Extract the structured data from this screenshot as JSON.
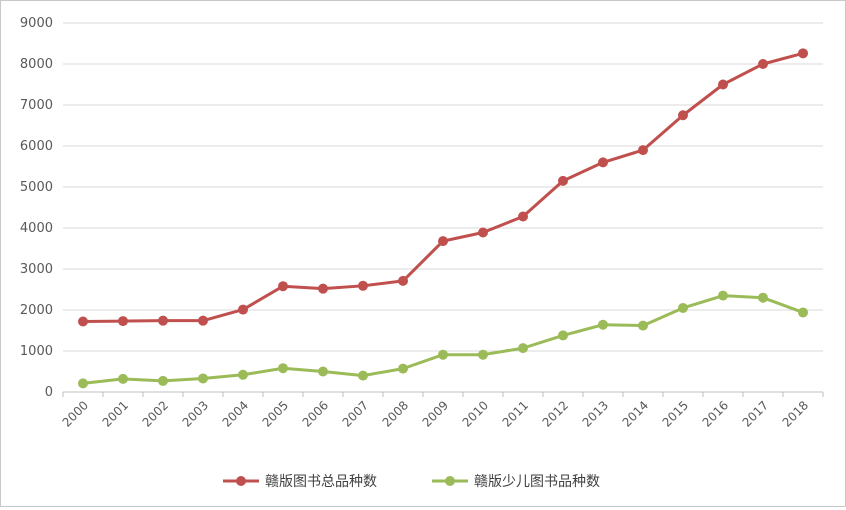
{
  "chart_data": {
    "type": "line",
    "title": "",
    "xlabel": "",
    "ylabel": "",
    "ylim": [
      0,
      9000
    ],
    "yticks": [
      0,
      1000,
      2000,
      3000,
      4000,
      5000,
      6000,
      7000,
      8000,
      9000
    ],
    "grid": true,
    "legend_position": "bottom",
    "categories": [
      "2000",
      "2001",
      "2002",
      "2003",
      "2004",
      "2005",
      "2006",
      "2007",
      "2008",
      "2009",
      "2010",
      "2011",
      "2012",
      "2013",
      "2014",
      "2015",
      "2016",
      "2017",
      "2018"
    ],
    "series": [
      {
        "name": "赣版图书总品种数",
        "color": "#c0504d",
        "values": [
          1720,
          1730,
          1740,
          1740,
          2010,
          2580,
          2520,
          2590,
          2710,
          3680,
          3890,
          4280,
          5150,
          5600,
          5900,
          6750,
          7500,
          8000,
          8260
        ]
      },
      {
        "name": "赣版少儿图书品种数",
        "color": "#9bbb59",
        "values": [
          210,
          320,
          270,
          330,
          420,
          580,
          500,
          400,
          570,
          910,
          910,
          1070,
          1380,
          1640,
          1620,
          2050,
          2350,
          2300,
          1940
        ]
      }
    ]
  }
}
